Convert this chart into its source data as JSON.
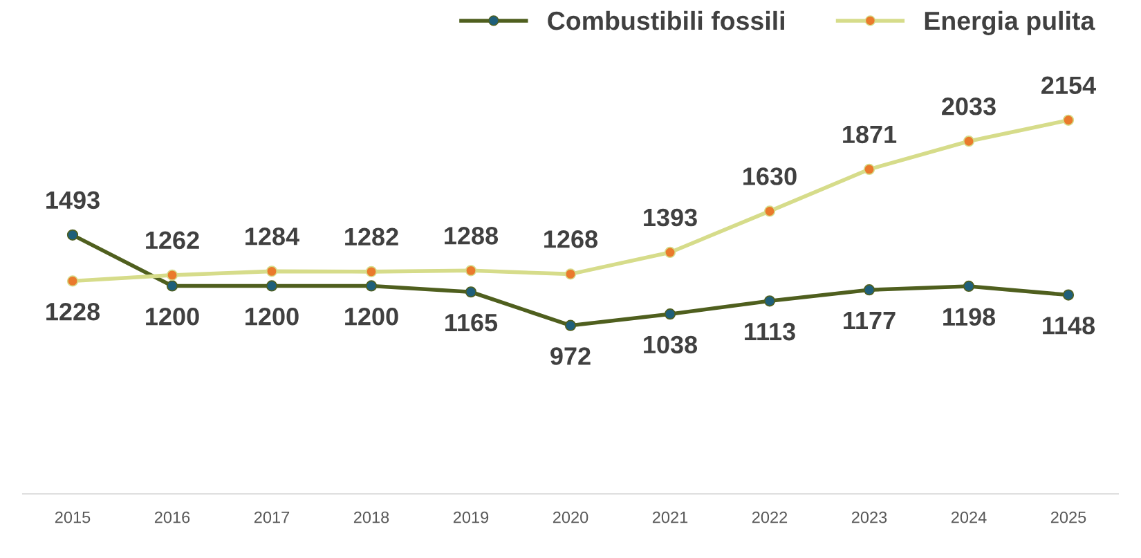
{
  "chart_data": {
    "type": "line",
    "categories": [
      "2015",
      "2016",
      "2017",
      "2018",
      "2019",
      "2020",
      "2021",
      "2022",
      "2023",
      "2024",
      "2025"
    ],
    "series": [
      {
        "name": "Combustibili fossili",
        "color": "#4f5f1e",
        "colors": [
          "#1f5f7a",
          "#1f5f7a",
          "#1f5f7a",
          "#1f5f7a",
          "#1f5f7a",
          "#1f5f7a",
          "#1f5f7a",
          "#1f5f7a",
          "#1f5f7a",
          "#1f5f7a",
          "#1f5f7a"
        ],
        "values": [
          1493,
          1200,
          1200,
          1200,
          1165,
          972,
          1038,
          1113,
          1177,
          1198,
          1148
        ]
      },
      {
        "name": "Energia pulita",
        "color": "#d6dc8a",
        "colors": [
          "#ea7a2c",
          "#ea7a2c",
          "#ea7a2c",
          "#ea7a2c",
          "#ea7a2c",
          "#ea7a2c",
          "#ea7a2c",
          "#ea7a2c",
          "#ea7a2c",
          "#ea7a2c",
          "#ea7a2c"
        ],
        "values": [
          1228,
          1262,
          1284,
          1282,
          1288,
          1268,
          1393,
          1630,
          1871,
          2033,
          2154
        ]
      }
    ],
    "tick_labels": "x",
    "data_labels": true,
    "legend": "top right",
    "grid": false,
    "marker": "circle",
    "line_style": "solid"
  }
}
